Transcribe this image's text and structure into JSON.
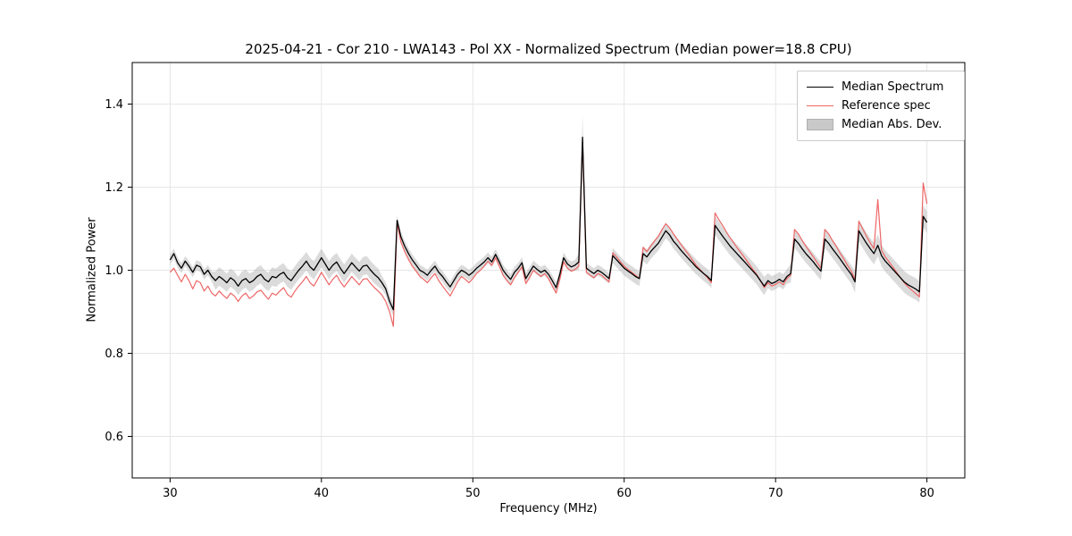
{
  "figure": {
    "title": "2025-04-21 - Cor 210 - LWA143 - Pol XX - Normalized Spectrum (Median power=18.8 CPU)",
    "xlabel": "Frequency (MHz)",
    "ylabel": "Normalized Power"
  },
  "legend": {
    "items": [
      {
        "label": "Median Spectrum",
        "type": "line",
        "color": "#000000"
      },
      {
        "label": "Reference spec",
        "type": "line",
        "color": "#ee6666"
      },
      {
        "label": "Median Abs. Dev.",
        "type": "patch",
        "color": "#c9c9c9"
      }
    ]
  },
  "chart_data": {
    "type": "line",
    "title": "2025-04-21 - Cor 210 - LWA143 - Pol XX - Normalized Spectrum (Median power=18.8 CPU)",
    "xlabel": "Frequency (MHz)",
    "ylabel": "Normalized Power",
    "xlim": [
      27.5,
      82.5
    ],
    "ylim": [
      0.5,
      1.5
    ],
    "xticks": [
      "30",
      "40",
      "50",
      "60",
      "70",
      "80"
    ],
    "xtick_values": [
      30,
      40,
      50,
      60,
      70,
      80
    ],
    "yticks": [
      "0.6",
      "0.8",
      "1.0",
      "1.2",
      "1.4"
    ],
    "ytick_values": [
      0.6,
      0.8,
      1.0,
      1.2,
      1.4
    ],
    "grid": true,
    "legend_position": "upper right",
    "x_start": 30.0,
    "x_step": 0.25,
    "x_unit": "MHz",
    "mad_color": "#a6a6a6",
    "mad_opacity": 0.4,
    "series": [
      {
        "name": "Median Spectrum",
        "color": "#000000",
        "values": [
          1.025,
          1.04,
          1.018,
          1.005,
          1.022,
          1.01,
          0.995,
          1.012,
          1.008,
          0.99,
          1.0,
          0.985,
          0.975,
          0.985,
          0.978,
          0.97,
          0.982,
          0.975,
          0.962,
          0.975,
          0.98,
          0.97,
          0.975,
          0.985,
          0.99,
          0.978,
          0.972,
          0.985,
          0.982,
          0.99,
          0.995,
          0.982,
          0.975,
          0.988,
          1.0,
          1.01,
          1.022,
          1.008,
          1.0,
          1.015,
          1.03,
          1.015,
          1.0,
          1.012,
          1.02,
          1.005,
          0.992,
          1.005,
          1.018,
          1.008,
          0.998,
          1.01,
          1.012,
          1.0,
          0.99,
          0.982,
          0.97,
          0.955,
          0.925,
          0.905,
          1.12,
          1.08,
          1.058,
          1.04,
          1.025,
          1.013,
          1.0,
          0.995,
          0.988,
          1.0,
          1.01,
          0.995,
          0.985,
          0.972,
          0.96,
          0.975,
          0.99,
          1.0,
          0.995,
          0.988,
          0.995,
          1.005,
          1.012,
          1.02,
          1.03,
          1.02,
          1.038,
          1.02,
          1.0,
          0.988,
          0.978,
          0.995,
          1.005,
          1.018,
          0.98,
          0.995,
          1.01,
          1.002,
          0.995,
          1.0,
          0.99,
          0.975,
          0.958,
          0.99,
          1.03,
          1.015,
          1.008,
          1.012,
          1.02,
          1.32,
          1.005,
          0.998,
          0.992,
          1.0,
          0.995,
          0.988,
          0.98,
          1.035,
          1.025,
          1.015,
          1.005,
          0.998,
          0.992,
          0.985,
          0.98,
          1.04,
          1.032,
          1.045,
          1.055,
          1.065,
          1.08,
          1.095,
          1.085,
          1.07,
          1.06,
          1.048,
          1.038,
          1.028,
          1.018,
          1.008,
          1.0,
          0.992,
          0.985,
          0.975,
          1.108,
          1.095,
          1.082,
          1.07,
          1.058,
          1.048,
          1.038,
          1.028,
          1.018,
          1.008,
          0.998,
          0.988,
          0.975,
          0.962,
          0.975,
          0.968,
          0.972,
          0.978,
          0.972,
          0.985,
          0.992,
          1.075,
          1.065,
          1.052,
          1.04,
          1.03,
          1.02,
          1.008,
          0.998,
          1.075,
          1.065,
          1.052,
          1.04,
          1.028,
          1.015,
          1.002,
          0.99,
          0.972,
          1.095,
          1.08,
          1.065,
          1.052,
          1.04,
          1.06,
          1.035,
          1.022,
          1.012,
          1.002,
          0.992,
          0.982,
          0.972,
          0.965,
          0.96,
          0.955,
          0.948,
          1.13,
          1.115
        ]
      },
      {
        "name": "Reference spec",
        "color": "#ee6666",
        "values": [
          0.995,
          1.005,
          0.988,
          0.972,
          0.99,
          0.975,
          0.955,
          0.975,
          0.97,
          0.95,
          0.962,
          0.945,
          0.938,
          0.95,
          0.94,
          0.932,
          0.945,
          0.938,
          0.925,
          0.938,
          0.945,
          0.932,
          0.938,
          0.948,
          0.952,
          0.94,
          0.93,
          0.945,
          0.94,
          0.95,
          0.958,
          0.942,
          0.935,
          0.95,
          0.962,
          0.972,
          0.985,
          0.97,
          0.962,
          0.978,
          0.995,
          0.98,
          0.965,
          0.978,
          0.988,
          0.972,
          0.96,
          0.972,
          0.985,
          0.975,
          0.965,
          0.978,
          0.98,
          0.968,
          0.958,
          0.95,
          0.94,
          0.925,
          0.9,
          0.865,
          1.112,
          1.068,
          1.045,
          1.026,
          1.01,
          0.998,
          0.985,
          0.978,
          0.97,
          0.982,
          0.992,
          0.975,
          0.962,
          0.95,
          0.938,
          0.955,
          0.972,
          0.985,
          0.978,
          0.97,
          0.98,
          0.992,
          1.0,
          1.01,
          1.022,
          1.012,
          1.03,
          1.01,
          0.988,
          0.975,
          0.965,
          0.982,
          0.995,
          1.008,
          0.968,
          0.982,
          1.0,
          0.992,
          0.985,
          0.992,
          0.98,
          0.962,
          0.945,
          0.978,
          1.02,
          1.005,
          0.998,
          1.002,
          1.01,
          1.31,
          0.995,
          0.988,
          0.982,
          0.992,
          0.988,
          0.98,
          0.972,
          1.042,
          1.032,
          1.02,
          1.01,
          1.002,
          0.995,
          0.988,
          0.98,
          1.055,
          1.045,
          1.058,
          1.07,
          1.082,
          1.098,
          1.112,
          1.102,
          1.088,
          1.075,
          1.062,
          1.05,
          1.038,
          1.025,
          1.012,
          1.002,
          0.992,
          0.982,
          0.97,
          1.138,
          1.122,
          1.108,
          1.092,
          1.078,
          1.065,
          1.052,
          1.04,
          1.028,
          1.015,
          1.002,
          0.99,
          0.975,
          0.958,
          0.97,
          0.962,
          0.966,
          0.972,
          0.965,
          0.98,
          0.988,
          1.098,
          1.088,
          1.072,
          1.058,
          1.045,
          1.032,
          1.018,
          1.005,
          1.098,
          1.088,
          1.072,
          1.058,
          1.042,
          1.028,
          1.012,
          0.998,
          0.978,
          1.118,
          1.1,
          1.082,
          1.066,
          1.052,
          1.17,
          1.048,
          1.032,
          1.02,
          1.008,
          0.995,
          0.982,
          0.97,
          0.96,
          0.952,
          0.944,
          0.936,
          1.21,
          1.16
        ]
      }
    ],
    "mad_halfwidth_runs": [
      [
        12,
        0.012
      ],
      [
        44,
        0.022
      ],
      [
        4,
        0.016
      ],
      [
        1,
        0.012
      ],
      [
        47,
        0.013
      ],
      [
        1,
        0.02
      ],
      [
        1,
        0.052
      ],
      [
        7,
        0.013
      ],
      [
        27,
        0.018
      ],
      [
        14,
        0.022
      ],
      [
        6,
        0.018
      ],
      [
        17,
        0.022
      ],
      [
        20,
        0.026
      ]
    ]
  }
}
